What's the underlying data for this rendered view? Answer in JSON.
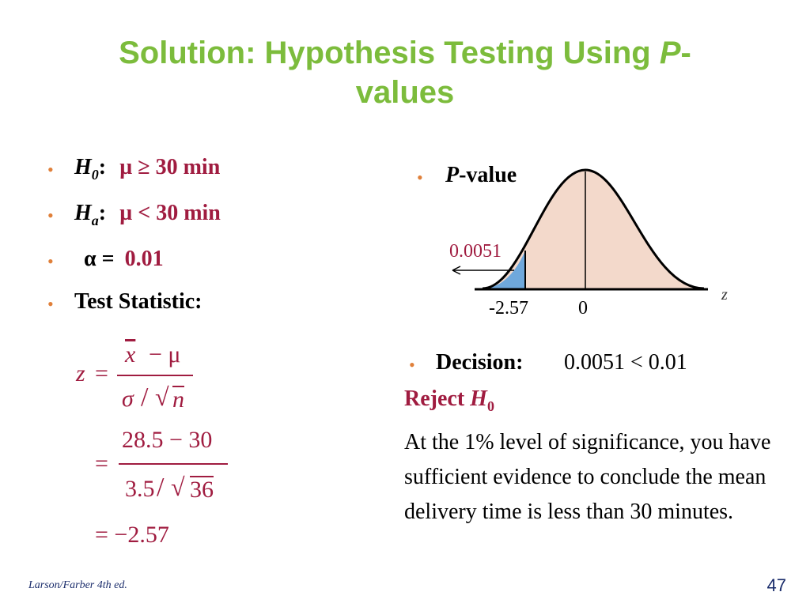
{
  "title": {
    "main": "Solution: Hypothesis Testing Using",
    "p": "P",
    "dash": "-",
    "line2": "values"
  },
  "left": {
    "h0_sym": "H",
    "h0_sub": "0",
    "colon": ":",
    "h0_value": "µ ≥ 30 min",
    "ha_sym": "H",
    "ha_sub": "a",
    "ha_value": "µ < 30 min",
    "alpha_sym": "α =",
    "alpha_value": "0.01",
    "test_stat": "Test Statistic:"
  },
  "formula": {
    "z": "z",
    "eq": "=",
    "num1": "x − μ",
    "xbar": "x",
    "minus_mu": "− μ",
    "sigma": "σ",
    "slash": "/",
    "sqrt": "√",
    "n": "n",
    "num2": "28.5 − 30",
    "den2_a": "3.5",
    "den2_b": "36",
    "result": "= −2.57"
  },
  "right": {
    "pvalue_p": "P",
    "pvalue_label": "-value",
    "area_label": "0.0051",
    "tick_neg": "-2.57",
    "tick_zero": "0",
    "axis_z": "z",
    "decision_label": "Decision:",
    "decision_value": "0.0051 < 0.01",
    "reject": "Reject",
    "reject_h": "H",
    "reject_sub": "0",
    "conclusion": "At the 1% level of significance, you have sufficient evidence to conclude the mean delivery time is less than 30 minutes."
  },
  "colors": {
    "title": "#7cbc3c",
    "accent": "#a01c40",
    "bullet": "#e0803a",
    "curve_fill": "#f3d9cb",
    "tail_fill": "#6fa8dc"
  },
  "footer": {
    "left": "Larson/Farber 4th ed.",
    "page": "47"
  }
}
